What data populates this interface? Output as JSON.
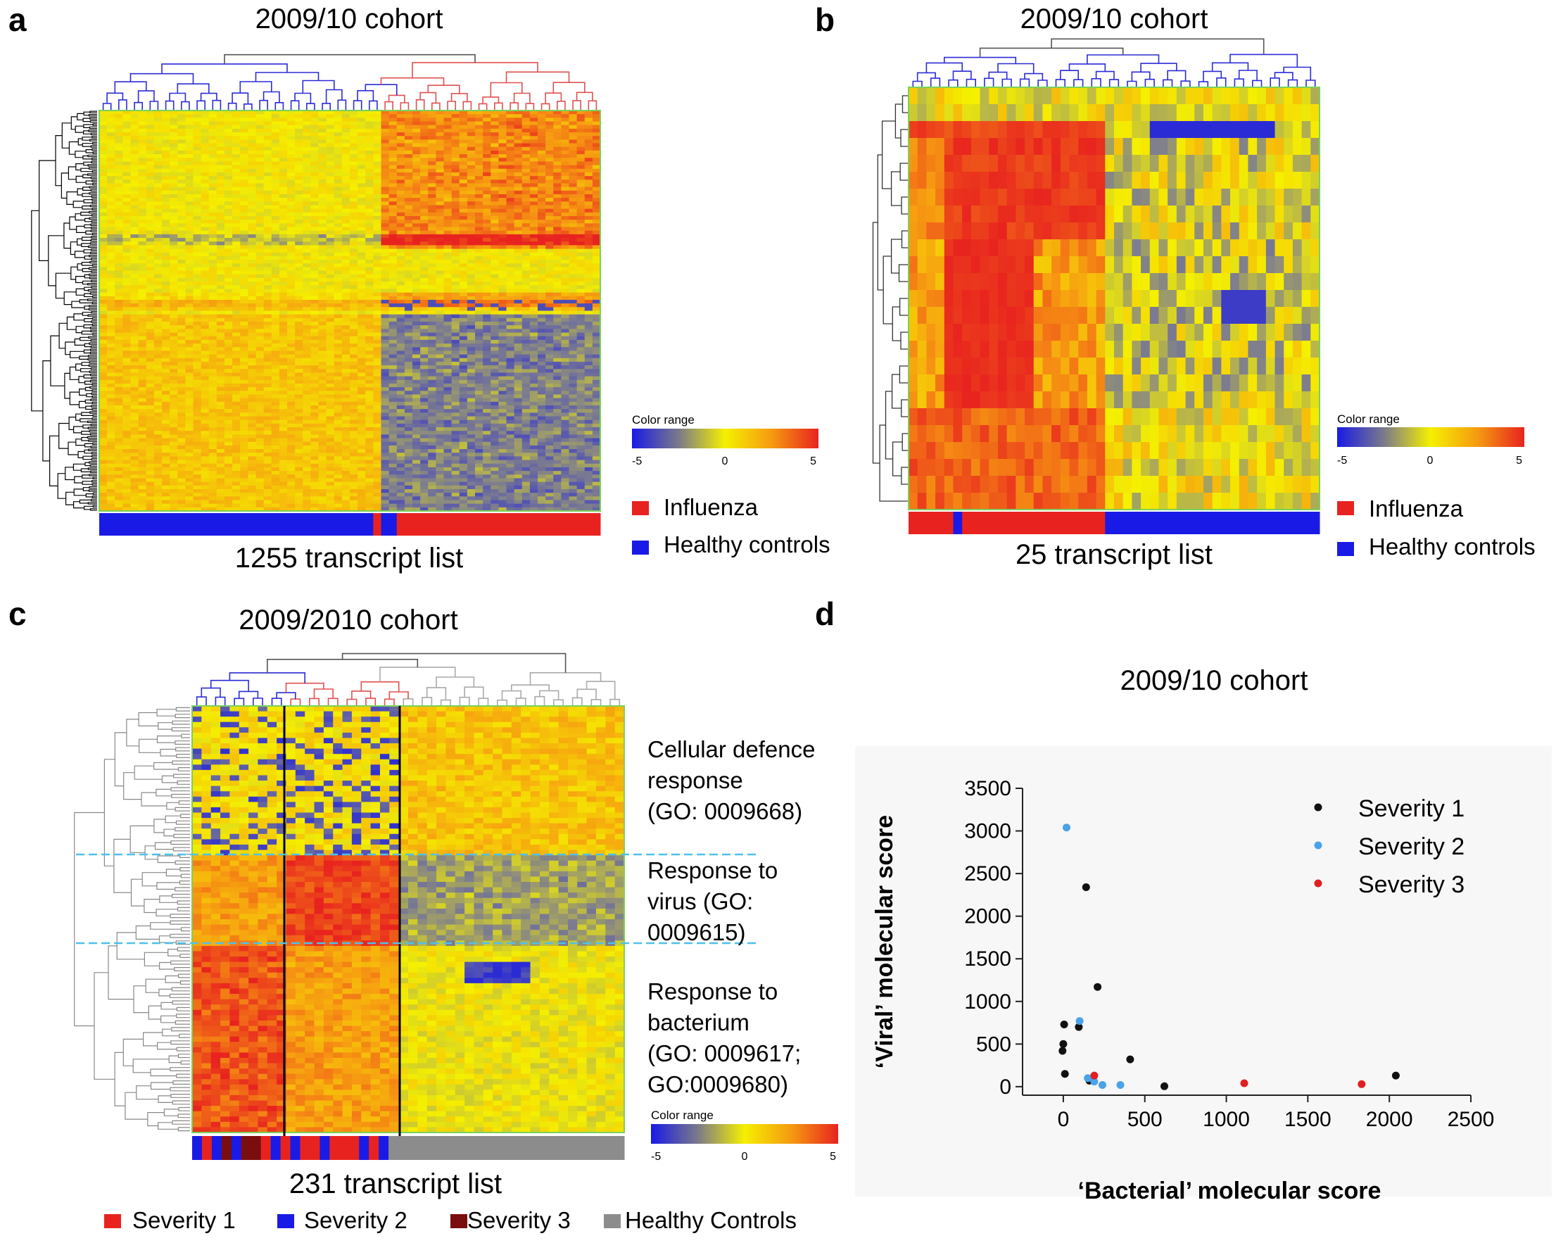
{
  "panels": {
    "a": {
      "letter": "a",
      "title": "2009/10 cohort",
      "subtitle": "1255 transcript list",
      "color_range_label": "Color range",
      "color_ticks": [
        "-5",
        "0",
        "5"
      ],
      "legend": [
        {
          "label": "Influenza",
          "color": "#e8231f"
        },
        {
          "label": "Healthy controls",
          "color": "#1a1ae6"
        }
      ]
    },
    "b": {
      "letter": "b",
      "title": "2009/10 cohort",
      "subtitle": "25 transcript list",
      "color_range_label": "Color range",
      "color_ticks": [
        "-5",
        "0",
        "5"
      ],
      "legend": [
        {
          "label": "Influenza",
          "color": "#e8231f"
        },
        {
          "label": "Healthy controls",
          "color": "#1a1ae6"
        }
      ]
    },
    "c": {
      "letter": "c",
      "title": "2009/2010 cohort",
      "subtitle": "231 transcript list",
      "color_range_label": "Color range",
      "color_ticks": [
        "-5",
        "0",
        "5"
      ],
      "go_terms": [
        {
          "lines": [
            "Cellular defence",
            "response",
            "(GO: 0009668)"
          ]
        },
        {
          "lines": [
            "Response to",
            "virus (GO:",
            "0009615)"
          ]
        },
        {
          "lines": [
            "Response to",
            "bacterium",
            "(GO: 0009617;",
            "GO:0009680)"
          ]
        }
      ],
      "legend": [
        {
          "label": "Severity 1",
          "color": "#e8231f"
        },
        {
          "label": "Severity 2",
          "color": "#1a1ae6"
        },
        {
          "label": "Severity 3",
          "color": "#7a0d0d"
        },
        {
          "label": "Healthy Controls",
          "color": "#8c8c8c"
        }
      ]
    },
    "d": {
      "letter": "d"
    }
  },
  "colors": {
    "low": "#2b2bd6",
    "mid": "#f5f000",
    "high": "#e8231f",
    "influenza": "#e8231f",
    "healthy": "#1a1ae6",
    "severity1_point": "#111111",
    "severity2_point": "#4aa3e8",
    "severity3_point": "#e02020"
  },
  "chart_data": {
    "type": "scatter",
    "title": "2009/10 cohort",
    "xlabel": "‘Bacterial’ molecular score",
    "ylabel": "‘Viral’ molecular score",
    "xlim": [
      -250,
      2500
    ],
    "ylim": [
      -100,
      3500
    ],
    "xticks": [
      0,
      500,
      1000,
      1500,
      2000,
      2500
    ],
    "yticks": [
      0,
      500,
      1000,
      1500,
      2000,
      2500,
      3000,
      3500
    ],
    "series": [
      {
        "name": "Severity 1",
        "color": "#111111",
        "points": [
          [
            5,
            730
          ],
          [
            0,
            500
          ],
          [
            -5,
            420
          ],
          [
            10,
            150
          ],
          [
            95,
            700
          ],
          [
            140,
            2340
          ],
          [
            210,
            1170
          ],
          [
            160,
            70
          ],
          [
            410,
            320
          ],
          [
            620,
            5
          ],
          [
            2040,
            130
          ]
        ]
      },
      {
        "name": "Severity 2",
        "color": "#4aa3e8",
        "points": [
          [
            20,
            3040
          ],
          [
            100,
            770
          ],
          [
            150,
            100
          ],
          [
            190,
            60
          ],
          [
            240,
            20
          ],
          [
            350,
            20
          ]
        ]
      },
      {
        "name": "Severity 3",
        "color": "#e02020",
        "points": [
          [
            190,
            130
          ],
          [
            1110,
            40
          ],
          [
            1830,
            30
          ]
        ]
      }
    ]
  }
}
